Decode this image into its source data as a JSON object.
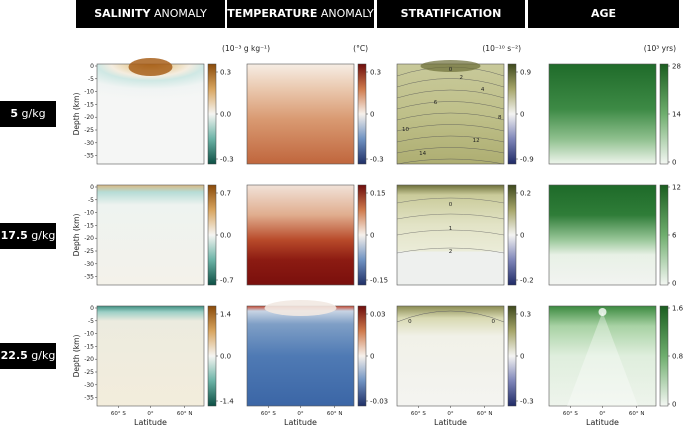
{
  "headers": [
    {
      "bold": "SALINITY",
      "rest": " ANOMALY"
    },
    {
      "bold": "TEMPERATURE",
      "rest": " ANOMALY"
    },
    {
      "bold": "STRATIFICATION",
      "rest": ""
    },
    {
      "bold": "AGE",
      "rest": ""
    }
  ],
  "rows": [
    {
      "bold": "5",
      "rest": " g/kg"
    },
    {
      "bold": "17.5",
      "rest": " g/kg"
    },
    {
      "bold": "22.5",
      "rest": " g/kg"
    }
  ],
  "units": [
    "(10⁻³ g kg⁻¹)",
    "(°C)",
    "(10⁻¹⁰ s⁻²)",
    "(10³ yrs)"
  ],
  "colors": {
    "salinity_low": "#1f7060",
    "salinity_high": "#9a5510",
    "temperature_low": "#1f3a70",
    "temperature_high": "#6e0d0d",
    "stratification_low": "#25306a",
    "stratification_high": "#3f4a1e",
    "age_high": "#1b5e20"
  },
  "chart_data": [
    {
      "type": "heatmap",
      "variable": "salinity anomaly",
      "row": "5 g/kg",
      "xlabel": "",
      "ylabel": "Depth (km)",
      "x_ticks": [],
      "y_ticks": [
        0,
        -5,
        -10,
        -15,
        -20,
        -25,
        -30,
        -35
      ],
      "colorbar": {
        "ticks": [
          "0.3",
          "0.0",
          "-0.3"
        ],
        "range": [
          -0.3,
          0.3
        ]
      }
    },
    {
      "type": "heatmap",
      "variable": "temperature anomaly",
      "row": "5 g/kg",
      "x_ticks": [],
      "y_ticks": [],
      "colorbar": {
        "ticks": [
          "0.3",
          "0",
          "-0.3"
        ],
        "range": [
          -0.3,
          0.3
        ]
      }
    },
    {
      "type": "heatmap",
      "variable": "stratification",
      "row": "5 g/kg",
      "x_ticks": [],
      "y_ticks": [],
      "colorbar": {
        "ticks": [
          "0.9",
          "0",
          "-0.9"
        ],
        "range": [
          -0.9,
          0.9
        ]
      },
      "contour_labels": [
        "0",
        "2",
        "4",
        "6",
        "8",
        "10",
        "12",
        "14"
      ]
    },
    {
      "type": "heatmap",
      "variable": "age",
      "row": "5 g/kg",
      "x_ticks": [],
      "y_ticks": [],
      "colorbar": {
        "ticks": [
          "28",
          "14",
          "0"
        ],
        "range": [
          0,
          28
        ]
      }
    },
    {
      "type": "heatmap",
      "variable": "salinity anomaly",
      "row": "17.5 g/kg",
      "xlabel": "",
      "ylabel": "Depth (km)",
      "x_ticks": [],
      "y_ticks": [
        0,
        -5,
        -10,
        -15,
        -20,
        -25,
        -30,
        -35
      ],
      "colorbar": {
        "ticks": [
          "0.7",
          "0.0",
          "-0.7"
        ],
        "range": [
          -0.7,
          0.7
        ]
      }
    },
    {
      "type": "heatmap",
      "variable": "temperature anomaly",
      "row": "17.5 g/kg",
      "x_ticks": [],
      "y_ticks": [],
      "colorbar": {
        "ticks": [
          "0.15",
          "0",
          "-0.15"
        ],
        "range": [
          -0.15,
          0.15
        ]
      }
    },
    {
      "type": "heatmap",
      "variable": "stratification",
      "row": "17.5 g/kg",
      "x_ticks": [],
      "y_ticks": [],
      "colorbar": {
        "ticks": [
          "0.2",
          "0",
          "-0.2"
        ],
        "range": [
          -0.2,
          0.2
        ]
      },
      "contour_labels": [
        "0",
        "1",
        "2"
      ]
    },
    {
      "type": "heatmap",
      "variable": "age",
      "row": "17.5 g/kg",
      "x_ticks": [],
      "y_ticks": [],
      "colorbar": {
        "ticks": [
          "12",
          "6",
          "0"
        ],
        "range": [
          0,
          12
        ]
      }
    },
    {
      "type": "heatmap",
      "variable": "salinity anomaly",
      "row": "22.5 g/kg",
      "xlabel": "Latitude",
      "ylabel": "Depth (km)",
      "x_ticks": [
        "60° S",
        "0°",
        "60° N"
      ],
      "y_ticks": [
        0,
        -5,
        -10,
        -15,
        -20,
        -25,
        -30,
        -35
      ],
      "colorbar": {
        "ticks": [
          "1.4",
          "0.0",
          "-1.4"
        ],
        "range": [
          -1.4,
          1.4
        ]
      }
    },
    {
      "type": "heatmap",
      "variable": "temperature anomaly",
      "row": "22.5 g/kg",
      "xlabel": "Latitude",
      "x_ticks": [
        "60° S",
        "0°",
        "60° N"
      ],
      "y_ticks": [],
      "colorbar": {
        "ticks": [
          "0.03",
          "0",
          "-0.03"
        ],
        "range": [
          -0.03,
          0.03
        ]
      }
    },
    {
      "type": "heatmap",
      "variable": "stratification",
      "row": "22.5 g/kg",
      "xlabel": "Latitude",
      "x_ticks": [
        "60° S",
        "0°",
        "60° N"
      ],
      "y_ticks": [],
      "colorbar": {
        "ticks": [
          "0.3",
          "0",
          "-0.3"
        ],
        "range": [
          -0.3,
          0.3
        ]
      },
      "contour_labels": [
        "0",
        "0"
      ]
    },
    {
      "type": "heatmap",
      "variable": "age",
      "row": "22.5 g/kg",
      "xlabel": "Latitude",
      "x_ticks": [
        "60° S",
        "0°",
        "60° N"
      ],
      "y_ticks": [],
      "colorbar": {
        "ticks": [
          "1.6",
          "0.8",
          "0"
        ],
        "range": [
          0,
          1.6
        ]
      }
    }
  ]
}
